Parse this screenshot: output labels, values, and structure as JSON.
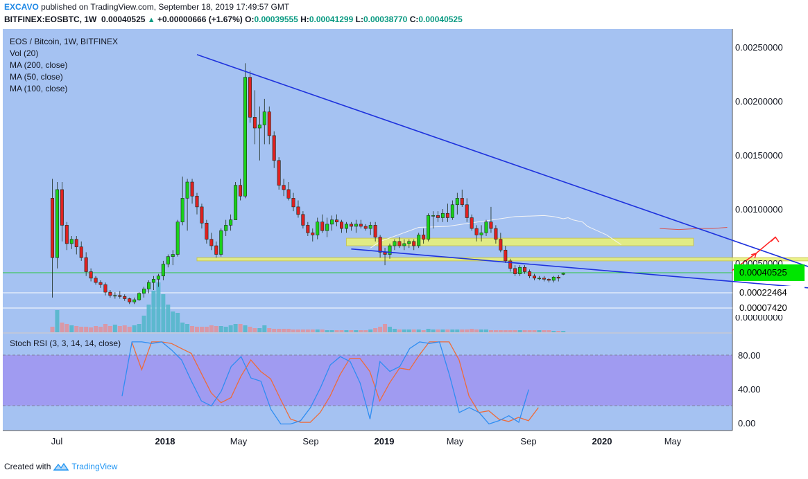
{
  "header": {
    "publisher": "EXCAVO",
    "published_text": "published on TradingView.com, September 18, 2019 17:49:57 GMT",
    "symbol": "BITFINEX:EOSBTC, 1W",
    "last": "0.00040525",
    "triangle": "▲",
    "change": "+0.00000666 (+1.67%)",
    "o_label": "O:",
    "o": "0.00039555",
    "h_label": "H:",
    "h": "0.00041299",
    "l_label": "L:",
    "l": "0.00038770",
    "c_label": "C:",
    "c": "0.00040525"
  },
  "legend": {
    "title": "EOS / Bitcoin, 1W, BITFINEX",
    "vol": "Vol (20)",
    "ma200": "MA (200, close)",
    "ma50": "MA (50, close)",
    "ma100": "MA (100, close)"
  },
  "stoch_title": "Stoch RSI (3, 3, 14, 14, close)",
  "footer": {
    "created": "Created with",
    "brand": "TradingView"
  },
  "price_axis": {
    "labels": [
      "0.00250000",
      "0.00200000",
      "0.00150000",
      "0.00100000",
      "0.00050000",
      "0.00000000"
    ],
    "current": "0.00040525",
    "level_a": "0.00022464",
    "level_b": "0.00007420"
  },
  "time_axis": [
    "Jul",
    "2018",
    "May",
    "Sep",
    "2019",
    "May",
    "Sep",
    "2020",
    "May"
  ],
  "rsi_axis": [
    "80.00",
    "40.00",
    "0.00"
  ],
  "colors": {
    "background": "#a5c2f2",
    "rsi_band": "#a09bf1",
    "bull": "#1ad11a",
    "bear": "#e02020",
    "trendline": "#1f33dd",
    "zone": "#e8f07a",
    "current": "#00e600",
    "k_line": "#2f8df2",
    "d_line": "#ee6b3a"
  },
  "chart_data": {
    "type": "candlestick",
    "title": "EOS / Bitcoin, 1W, BITFINEX",
    "ylim": [
      0,
      0.0027
    ],
    "candles": [
      [
        0.0011,
        0.00128,
        0.00018,
        0.00055
      ],
      [
        0.00055,
        0.00125,
        0.00045,
        0.00118
      ],
      [
        0.00118,
        0.00125,
        0.0007,
        0.00085
      ],
      [
        0.00085,
        0.00088,
        0.00062,
        0.00068
      ],
      [
        0.00068,
        0.00075,
        0.00063,
        0.00072
      ],
      [
        0.00072,
        0.00075,
        0.00058,
        0.00065
      ],
      [
        0.00065,
        0.0007,
        0.00052,
        0.00055
      ],
      [
        0.00055,
        0.0006,
        0.00038,
        0.00042
      ],
      [
        0.00042,
        0.00045,
        0.00033,
        0.00036
      ],
      [
        0.00036,
        0.00038,
        0.0003,
        0.00032
      ],
      [
        0.00032,
        0.00034,
        0.00027,
        0.0003
      ],
      [
        0.0003,
        0.00032,
        0.0002,
        0.00023
      ],
      [
        0.00023,
        0.00025,
        0.00018,
        0.0002
      ],
      [
        0.0002,
        0.00023,
        0.00017,
        0.0002
      ],
      [
        0.0002,
        0.00024,
        0.00017,
        0.00019
      ],
      [
        0.00019,
        0.00021,
        0.00015,
        0.00017
      ],
      [
        0.00017,
        0.00018,
        0.00012,
        0.00014
      ],
      [
        0.00014,
        0.00018,
        0.00012,
        0.00016
      ],
      [
        0.00016,
        0.00023,
        0.00015,
        0.00022
      ],
      [
        0.00022,
        0.00028,
        0.00018,
        0.00026
      ],
      [
        0.00026,
        0.00034,
        0.00022,
        0.00032
      ],
      [
        0.00032,
        0.00038,
        0.00025,
        0.00035
      ],
      [
        0.00035,
        0.0004,
        0.00028,
        0.00038
      ],
      [
        0.00038,
        0.00052,
        0.00034,
        0.00049
      ],
      [
        0.00049,
        0.00058,
        0.00046,
        0.00056
      ],
      [
        0.00056,
        0.00062,
        0.00048,
        0.00058
      ],
      [
        0.00058,
        0.0009,
        0.00056,
        0.00088
      ],
      [
        0.00088,
        0.0013,
        0.00085,
        0.0011
      ],
      [
        0.0011,
        0.00128,
        0.0008,
        0.00125
      ],
      [
        0.00125,
        0.00128,
        0.00105,
        0.00112
      ],
      [
        0.00112,
        0.00115,
        0.00095,
        0.00102
      ],
      [
        0.00102,
        0.00105,
        0.00082,
        0.00087
      ],
      [
        0.00087,
        0.0009,
        0.00068,
        0.00072
      ],
      [
        0.00072,
        0.00078,
        0.00062,
        0.00066
      ],
      [
        0.00066,
        0.0007,
        0.00055,
        0.00058
      ],
      [
        0.00058,
        0.00082,
        0.00056,
        0.0008
      ],
      [
        0.0008,
        0.0009,
        0.00075,
        0.00085
      ],
      [
        0.00085,
        0.00095,
        0.0008,
        0.0009
      ],
      [
        0.0009,
        0.00125,
        0.0009,
        0.00122
      ],
      [
        0.00122,
        0.00128,
        0.00108,
        0.00112
      ],
      [
        0.00112,
        0.00235,
        0.0011,
        0.00222
      ],
      [
        0.00222,
        0.00228,
        0.0018,
        0.00185
      ],
      [
        0.00185,
        0.0021,
        0.0016,
        0.00175
      ],
      [
        0.00175,
        0.00195,
        0.00145,
        0.00178
      ],
      [
        0.00178,
        0.00202,
        0.0016,
        0.0019
      ],
      [
        0.0019,
        0.00195,
        0.0016,
        0.00168
      ],
      [
        0.00168,
        0.00172,
        0.00138,
        0.00145
      ],
      [
        0.00145,
        0.00148,
        0.00118,
        0.00122
      ],
      [
        0.00122,
        0.00128,
        0.00112,
        0.00118
      ],
      [
        0.00118,
        0.00125,
        0.00108,
        0.0011
      ],
      [
        0.0011,
        0.00115,
        0.00098,
        0.00102
      ],
      [
        0.00102,
        0.00108,
        0.00092,
        0.00095
      ],
      [
        0.00095,
        0.00098,
        0.00082,
        0.00085
      ],
      [
        0.00085,
        0.00088,
        0.00075,
        0.00078
      ],
      [
        0.00078,
        0.00082,
        0.0007,
        0.00076
      ],
      [
        0.00076,
        0.00092,
        0.00072,
        0.00088
      ],
      [
        0.00088,
        0.00095,
        0.00078,
        0.0008
      ],
      [
        0.0008,
        0.00092,
        0.00074,
        0.00086
      ],
      [
        0.00086,
        0.00094,
        0.0008,
        0.0009
      ],
      [
        0.0009,
        0.00095,
        0.00084,
        0.00088
      ],
      [
        0.00088,
        0.0009,
        0.00078,
        0.00082
      ],
      [
        0.00082,
        0.00088,
        0.00078,
        0.00086
      ],
      [
        0.00086,
        0.00088,
        0.0008,
        0.00084
      ],
      [
        0.00084,
        0.0009,
        0.00078,
        0.00086
      ],
      [
        0.00086,
        0.0009,
        0.00082,
        0.00084
      ],
      [
        0.00084,
        0.00086,
        0.0008,
        0.00082
      ],
      [
        0.00082,
        0.00088,
        0.00076,
        0.00085
      ],
      [
        0.00085,
        0.00088,
        0.0007,
        0.00074
      ],
      [
        0.00074,
        0.00076,
        0.00055,
        0.0006
      ],
      [
        0.0006,
        0.00064,
        0.00048,
        0.00058
      ],
      [
        0.00058,
        0.00068,
        0.00054,
        0.00066
      ],
      [
        0.00066,
        0.00072,
        0.00062,
        0.0007
      ],
      [
        0.0007,
        0.00074,
        0.00064,
        0.00066
      ],
      [
        0.00066,
        0.00072,
        0.00062,
        0.00068
      ],
      [
        0.00068,
        0.00072,
        0.00064,
        0.0007
      ],
      [
        0.0007,
        0.00072,
        0.00062,
        0.00066
      ],
      [
        0.00066,
        0.00078,
        0.00064,
        0.00076
      ],
      [
        0.00076,
        0.00082,
        0.00068,
        0.00072
      ],
      [
        0.00072,
        0.00096,
        0.0007,
        0.00094
      ],
      [
        0.00094,
        0.00098,
        0.00082,
        0.00094
      ],
      [
        0.00094,
        0.00098,
        0.00088,
        0.00092
      ],
      [
        0.00092,
        0.001,
        0.00088,
        0.00096
      ],
      [
        0.00096,
        0.00105,
        0.00088,
        0.00092
      ],
      [
        0.00092,
        0.00108,
        0.0009,
        0.00104
      ],
      [
        0.00104,
        0.00115,
        0.00095,
        0.0011
      ],
      [
        0.0011,
        0.00118,
        0.00102,
        0.00104
      ],
      [
        0.00104,
        0.0011,
        0.00088,
        0.00092
      ],
      [
        0.00092,
        0.00095,
        0.0008,
        0.00082
      ],
      [
        0.00082,
        0.00085,
        0.0007,
        0.00076
      ],
      [
        0.00076,
        0.00085,
        0.0007,
        0.00078
      ],
      [
        0.00078,
        0.0009,
        0.00075,
        0.00088
      ],
      [
        0.00088,
        0.00102,
        0.00078,
        0.00082
      ],
      [
        0.00082,
        0.00085,
        0.00068,
        0.00072
      ],
      [
        0.00072,
        0.00078,
        0.0006,
        0.00062
      ],
      [
        0.00062,
        0.00066,
        0.0005,
        0.00052
      ],
      [
        0.00052,
        0.00054,
        0.00042,
        0.00045
      ],
      [
        0.00045,
        0.00048,
        0.00038,
        0.0004
      ],
      [
        0.0004,
        0.00048,
        0.00038,
        0.00046
      ],
      [
        0.00046,
        0.00048,
        0.0004,
        0.00042
      ],
      [
        0.00042,
        0.00044,
        0.00036,
        0.00038
      ],
      [
        0.00038,
        0.0004,
        0.00034,
        0.00036
      ],
      [
        0.00036,
        0.00038,
        0.00034,
        0.00036
      ],
      [
        0.00036,
        0.00038,
        0.00033,
        0.00035
      ],
      [
        0.00035,
        0.00036,
        0.00032,
        0.00034
      ],
      [
        0.00034,
        0.00038,
        0.00032,
        0.00037
      ],
      [
        0.00037,
        0.00039,
        0.00033,
        0.00036
      ],
      [
        0.0003956,
        0.00041299,
        0.0003877,
        0.00040525
      ]
    ],
    "volume": [
      8,
      32,
      14,
      12,
      10,
      9,
      8,
      8,
      7,
      9,
      8,
      12,
      9,
      11,
      9,
      10,
      8,
      10,
      12,
      24,
      40,
      60,
      72,
      55,
      40,
      30,
      28,
      14,
      12,
      9,
      8,
      8,
      8,
      10,
      9,
      9,
      8,
      10,
      12,
      12,
      10,
      8,
      6,
      6,
      10,
      6,
      5,
      5,
      5,
      5,
      4,
      4,
      4,
      4,
      4,
      4,
      4,
      3,
      3,
      3,
      3,
      3,
      3,
      3,
      3,
      3,
      4,
      6,
      8,
      12,
      8,
      5,
      4,
      4,
      4,
      4,
      4,
      3,
      5,
      4,
      4,
      4,
      4,
      4,
      4,
      4,
      4,
      5,
      4,
      4,
      4,
      3,
      3,
      3,
      3,
      3,
      3,
      3,
      3,
      3,
      3,
      3,
      3,
      3,
      2,
      2,
      2
    ],
    "ma50": [
      [
        0.00066,
        0.00064
      ],
      [
        0.00068,
        0.0007
      ],
      [
        0.00076,
        0.00083
      ],
      [
        0.00082,
        0.00084
      ],
      [
        0.00096,
        0.00093
      ],
      [
        0.00102,
        0.00094
      ],
      [
        0.00104,
        0.00093
      ],
      [
        0.00106,
        0.00091
      ],
      [
        0.00107,
        0.00092
      ],
      [
        0.00108,
        0.0009
      ],
      [
        0.0011,
        0.00088
      ],
      [
        0.00111,
        0.00084
      ],
      [
        0.00113,
        0.0008
      ],
      [
        0.00115,
        0.00076
      ],
      [
        0.00117,
        0.0007
      ],
      [
        0.00118,
        0.00067
      ]
    ],
    "ma100": [
      [
        0.00126,
        0.00082
      ],
      [
        0.0013,
        0.00081
      ],
      [
        0.00134,
        0.00082
      ],
      [
        0.00137,
        0.00082
      ],
      [
        0.0014,
        0.00083
      ]
    ],
    "trend_upper": [
      [
        0.0003,
        0.00243
      ],
      [
        0.00176,
        0.00017
      ]
    ],
    "trend_lower": [
      [
        0.00062,
        0.00063
      ],
      [
        0.0017,
        0.00022
      ]
    ],
    "zones": [
      {
        "from": 0.00061,
        "to": 0.00133,
        "low": 0.00066,
        "high": 0.00073
      },
      {
        "from": 0.0003,
        "to": 0.00163,
        "low": 0.00052,
        "high": 0.00055
      }
    ],
    "projection": [
      [
        0.00141,
        0.00043
      ],
      [
        0.00146,
        0.00059
      ],
      [
        0.0015,
        0.00074
      ]
    ],
    "stoch_k": [
      34,
      100,
      100,
      98,
      100,
      90,
      78,
      52,
      28,
      22,
      40,
      70,
      82,
      56,
      52,
      18,
      0,
      0,
      4,
      20,
      44,
      72,
      82,
      76,
      50,
      6,
      76,
      64,
      70,
      92,
      100,
      98,
      100,
      60,
      14,
      20,
      14,
      0,
      4,
      10,
      2,
      42
    ],
    "stoch_d": [
      100,
      66,
      100,
      100,
      98,
      92,
      86,
      62,
      38,
      26,
      32,
      58,
      78,
      64,
      55,
      30,
      6,
      2,
      2,
      14,
      34,
      60,
      80,
      80,
      64,
      28,
      50,
      68,
      66,
      84,
      100,
      100,
      100,
      78,
      34,
      14,
      16,
      6,
      3,
      8,
      4,
      20
    ],
    "stoch_ylim": [
      -8,
      110
    ]
  }
}
